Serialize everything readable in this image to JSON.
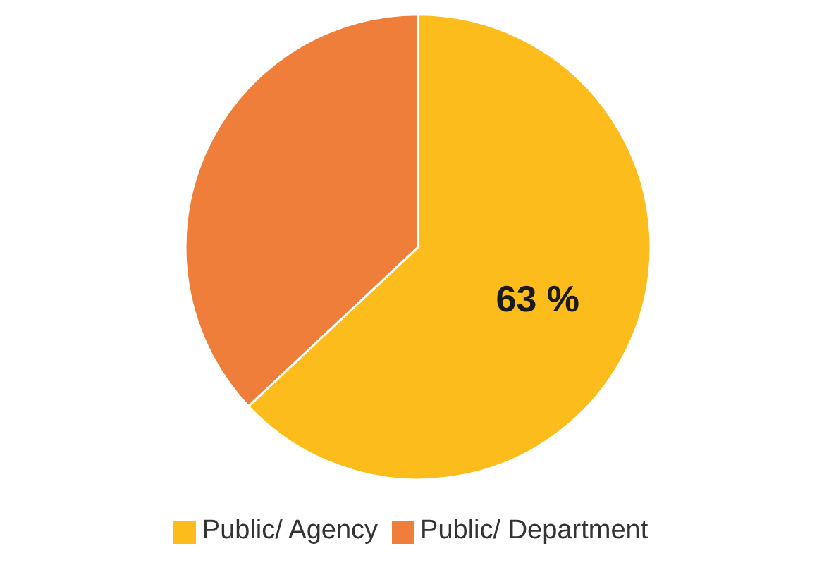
{
  "chart_data": {
    "type": "pie",
    "categories": [
      "Public/ Agency",
      "Public/ Department"
    ],
    "values": [
      63,
      37
    ],
    "colors": [
      "#fbbc1c",
      "#ee7e3a"
    ],
    "value_labels": [
      "63 %",
      null
    ],
    "legend": "bottom"
  }
}
